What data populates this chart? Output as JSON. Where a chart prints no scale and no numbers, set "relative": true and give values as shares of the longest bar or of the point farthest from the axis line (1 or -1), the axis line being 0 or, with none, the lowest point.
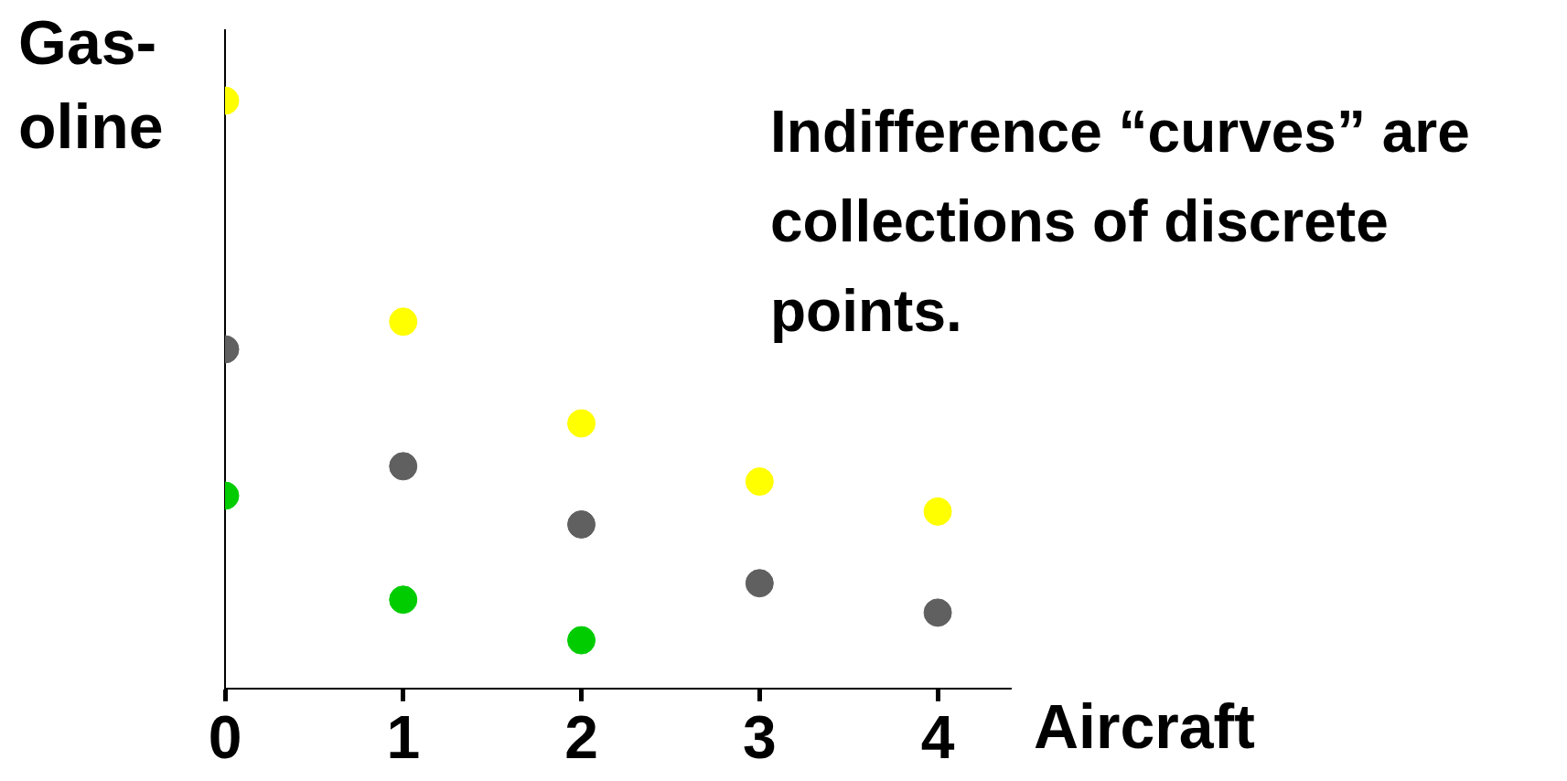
{
  "chart_data": {
    "type": "scatter",
    "xlabel": "Aircraft",
    "ylabel": "Gas-oline",
    "relative": true,
    "marker": "circle",
    "grid": false,
    "legend": false,
    "xlim": [
      0,
      4.4
    ],
    "xticks": [
      0,
      1,
      2,
      3,
      4
    ],
    "annotations": [
      "Indifference “curves” are collections of discrete points."
    ],
    "series": [
      {
        "color": "#ffff00",
        "x": [
          0,
          1,
          2,
          3,
          4
        ],
        "values": [
          1,
          0.624,
          0.451,
          0.352,
          0.301
        ]
      },
      {
        "color": "#606060",
        "x": [
          0,
          1,
          2,
          3,
          4
        ],
        "values": [
          0.577,
          0.378,
          0.279,
          0.179,
          0.129
        ]
      },
      {
        "color": "#00cc00",
        "x": [
          0,
          1,
          2
        ],
        "values": [
          0.328,
          0.151,
          0.082
        ]
      }
    ]
  }
}
